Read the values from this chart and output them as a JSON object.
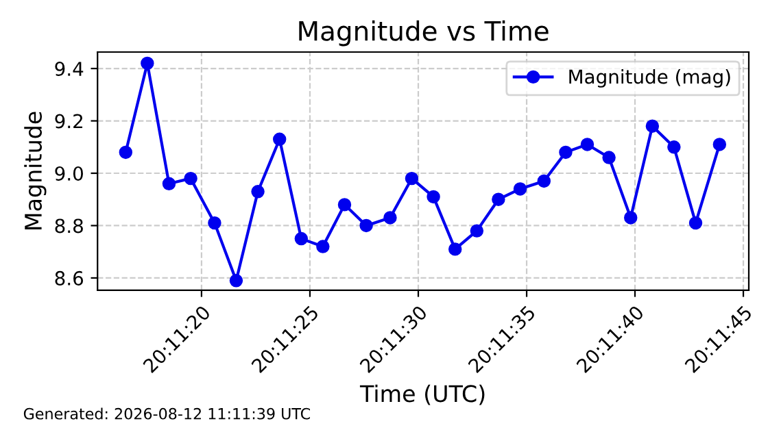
{
  "chart_data": {
    "type": "line",
    "title": "Magnitude vs Time",
    "xlabel": "Time (UTC)",
    "ylabel": "Magnitude",
    "x": [
      20.187917,
      20.188194,
      20.188472,
      20.18875,
      20.189056,
      20.189333,
      20.189611,
      20.189889,
      20.190167,
      20.190444,
      20.190722,
      20.191,
      20.191306,
      20.191583,
      20.191861,
      20.192139,
      20.192417,
      20.192694,
      20.192972,
      20.193278,
      20.193556,
      20.193833,
      20.194111,
      20.194389,
      20.194667,
      20.194944,
      20.195222,
      20.195528
    ],
    "series": [
      {
        "name": "Magnitude (mag)",
        "color": "#0000ee",
        "values": [
          9.08,
          9.42,
          8.96,
          8.98,
          8.81,
          8.59,
          8.93,
          9.13,
          8.75,
          8.72,
          8.88,
          8.8,
          8.83,
          8.98,
          8.91,
          8.71,
          8.78,
          8.9,
          8.94,
          8.97,
          9.08,
          9.11,
          9.06,
          8.83,
          9.18,
          9.1,
          8.81,
          9.11
        ]
      }
    ],
    "xlim": [
      20.187556,
      20.195903
    ],
    "xticks": [
      {
        "value": 20.188889,
        "label": "20:11:20"
      },
      {
        "value": 20.190278,
        "label": "20:11:25"
      },
      {
        "value": 20.191667,
        "label": "20:11:30"
      },
      {
        "value": 20.193056,
        "label": "20:11:35"
      },
      {
        "value": 20.194444,
        "label": "20:11:40"
      },
      {
        "value": 20.195833,
        "label": "20:11:45"
      }
    ],
    "ylim": [
      8.553,
      9.463
    ],
    "yticks": [
      8.6,
      8.8,
      {
        "value": 9.0,
        "label": "9.0"
      },
      9.2,
      9.4
    ],
    "grid": true,
    "legend": "top right",
    "marker": "circle",
    "line_style": "solid",
    "annotations": [
      "Generated: 2026-08-12 11:11:39 UTC"
    ]
  }
}
